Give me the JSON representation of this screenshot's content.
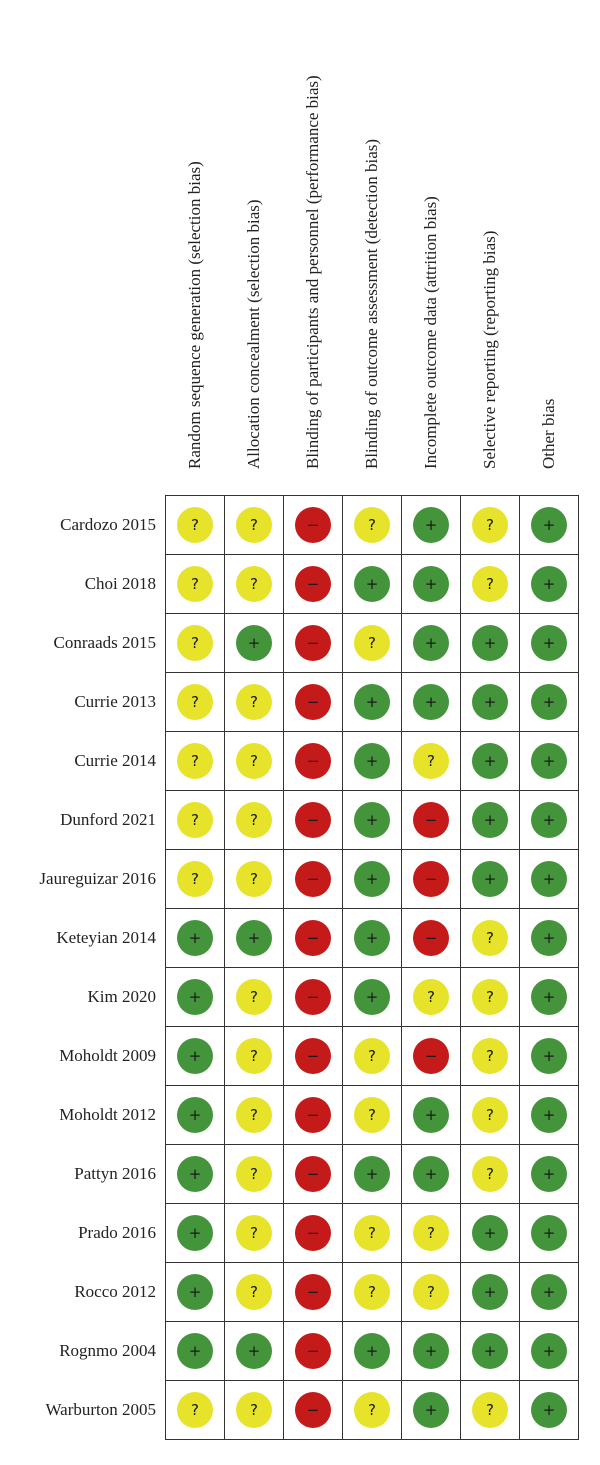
{
  "colors": {
    "low": "#43943b",
    "unclear": "#e6e32a",
    "high": "#c41a1a"
  },
  "symbols": {
    "low": "+",
    "unclear": "?",
    "high": "−"
  },
  "domains": [
    "Random sequence generation (selection bias)",
    "Allocation concealment (selection bias)",
    "Blinding of participants and personnel (performance bias)",
    "Blinding of outcome assessment (detection bias)",
    "Incomplete outcome data (attrition bias)",
    "Selective reporting (reporting bias)",
    "Other bias"
  ],
  "studies": [
    {
      "name": "Cardozo 2015",
      "ratings": [
        "unclear",
        "unclear",
        "high",
        "unclear",
        "low",
        "unclear",
        "low"
      ]
    },
    {
      "name": "Choi 2018",
      "ratings": [
        "unclear",
        "unclear",
        "high",
        "low",
        "low",
        "unclear",
        "low"
      ]
    },
    {
      "name": "Conraads 2015",
      "ratings": [
        "unclear",
        "low",
        "high",
        "unclear",
        "low",
        "low",
        "low"
      ]
    },
    {
      "name": "Currie 2013",
      "ratings": [
        "unclear",
        "unclear",
        "high",
        "low",
        "low",
        "low",
        "low"
      ]
    },
    {
      "name": "Currie 2014",
      "ratings": [
        "unclear",
        "unclear",
        "high",
        "low",
        "unclear",
        "low",
        "low"
      ]
    },
    {
      "name": "Dunford 2021",
      "ratings": [
        "unclear",
        "unclear",
        "high",
        "low",
        "high",
        "low",
        "low"
      ]
    },
    {
      "name": "Jaureguizar 2016",
      "ratings": [
        "unclear",
        "unclear",
        "high",
        "low",
        "high",
        "low",
        "low"
      ]
    },
    {
      "name": "Keteyian 2014",
      "ratings": [
        "low",
        "low",
        "high",
        "low",
        "high",
        "unclear",
        "low"
      ]
    },
    {
      "name": "Kim 2020",
      "ratings": [
        "low",
        "unclear",
        "high",
        "low",
        "unclear",
        "unclear",
        "low"
      ]
    },
    {
      "name": "Moholdt 2009",
      "ratings": [
        "low",
        "unclear",
        "high",
        "unclear",
        "high",
        "unclear",
        "low"
      ]
    },
    {
      "name": "Moholdt 2012",
      "ratings": [
        "low",
        "unclear",
        "high",
        "unclear",
        "low",
        "unclear",
        "low"
      ]
    },
    {
      "name": "Pattyn 2016",
      "ratings": [
        "low",
        "unclear",
        "high",
        "low",
        "low",
        "unclear",
        "low"
      ]
    },
    {
      "name": "Prado 2016",
      "ratings": [
        "low",
        "unclear",
        "high",
        "unclear",
        "unclear",
        "low",
        "low"
      ]
    },
    {
      "name": "Rocco 2012",
      "ratings": [
        "low",
        "unclear",
        "high",
        "unclear",
        "unclear",
        "low",
        "low"
      ]
    },
    {
      "name": "Rognmo 2004",
      "ratings": [
        "low",
        "low",
        "high",
        "low",
        "low",
        "low",
        "low"
      ]
    },
    {
      "name": "Warburton 2005",
      "ratings": [
        "unclear",
        "unclear",
        "high",
        "unclear",
        "low",
        "unclear",
        "low"
      ]
    }
  ]
}
